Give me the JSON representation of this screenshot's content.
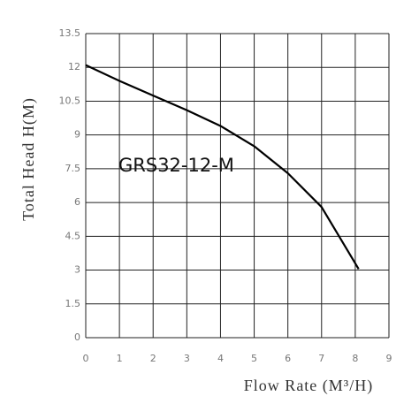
{
  "chart_data": {
    "type": "line",
    "annotation": "GRS32-12-M",
    "x_label": "Flow Rate (M³/H)",
    "y_label": "Total Head H(M)",
    "x": [
      0,
      1,
      2,
      3,
      4,
      5,
      6,
      7,
      8.1
    ],
    "series": [
      {
        "color": "#000000",
        "values": [
          12.1,
          11.4,
          10.75,
          10.1,
          9.4,
          8.5,
          7.3,
          5.8,
          3.05
        ]
      }
    ],
    "xlim": [
      0,
      9
    ],
    "xticks": [
      0,
      1,
      2,
      3,
      4,
      5,
      6,
      7,
      8,
      9
    ],
    "ylim": [
      0,
      13.5
    ],
    "yticks": [
      0,
      1.5,
      3,
      4.5,
      6,
      7.5,
      9,
      10.5,
      12,
      13.5
    ],
    "grid": true
  }
}
